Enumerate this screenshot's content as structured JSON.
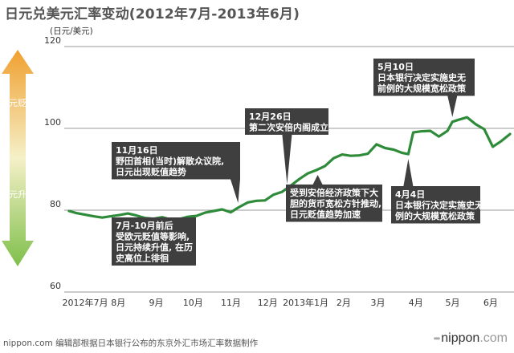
{
  "header": {
    "title": "日元兑美元汇率变动(2012年7月-2013年6月)"
  },
  "side_arrow": {
    "top_label": "日元贬值",
    "bottom_label": "日元升值",
    "top_color": "#f0a030",
    "bottom_color": "#7fbf4a"
  },
  "chart_data": {
    "type": "line",
    "ylabel": "(日元/美元)",
    "ylim": [
      60,
      120
    ],
    "y_ticks": [
      "120",
      "100",
      "80",
      "60"
    ],
    "grid": true,
    "legend": "none",
    "line_color": "#2e8b3a",
    "x_ticks": [
      "2012年7月",
      "8月",
      "9月",
      "10月",
      "11月",
      "12月",
      "2013年1月",
      "2月",
      "3月",
      "4月",
      "5月",
      "6月"
    ],
    "x": [
      "2012-07-01",
      "2012-07-07",
      "2012-07-14",
      "2012-07-21",
      "2012-07-28",
      "2012-08-04",
      "2012-08-11",
      "2012-08-18",
      "2012-08-25",
      "2012-09-01",
      "2012-09-08",
      "2012-09-15",
      "2012-09-22",
      "2012-09-29",
      "2012-10-06",
      "2012-10-13",
      "2012-10-20",
      "2012-10-27",
      "2012-11-03",
      "2012-11-10",
      "2012-11-16",
      "2012-11-24",
      "2012-12-01",
      "2012-12-08",
      "2012-12-15",
      "2012-12-22",
      "2012-12-29",
      "2013-01-05",
      "2013-01-12",
      "2013-01-19",
      "2013-01-26",
      "2013-02-02",
      "2013-02-09",
      "2013-02-16",
      "2013-02-23",
      "2013-03-02",
      "2013-03-09",
      "2013-03-16",
      "2013-03-23",
      "2013-03-30",
      "2013-04-04",
      "2013-04-08",
      "2013-04-15",
      "2013-04-22",
      "2013-04-29",
      "2013-05-06",
      "2013-05-10",
      "2013-05-15",
      "2013-05-22",
      "2013-05-29",
      "2013-06-05",
      "2013-06-12",
      "2013-06-19",
      "2013-06-26"
    ],
    "values": [
      79.8,
      79.3,
      78.9,
      78.5,
      78.2,
      78.5,
      78.8,
      79.2,
      78.7,
      78.1,
      77.9,
      78.3,
      77.7,
      77.8,
      78.4,
      78.6,
      79.4,
      79.8,
      80.2,
      79.5,
      80.6,
      81.9,
      82.3,
      82.4,
      83.8,
      84.5,
      86.0,
      87.6,
      89.0,
      89.8,
      90.8,
      92.7,
      93.6,
      93.3,
      93.4,
      93.8,
      96.1,
      95.2,
      94.8,
      94.0,
      93.7,
      99.0,
      99.3,
      99.4,
      98.0,
      99.4,
      101.6,
      102.1,
      102.7,
      101.0,
      99.8,
      95.5,
      96.9,
      98.6
    ],
    "annotations": [
      {
        "lines": [
          "7月-10月前后",
          "受欧元贬值等影响,",
          "日元持续升值, 在历",
          "史高位上徘徊"
        ],
        "date": "2012-09-15",
        "value": 77.9
      },
      {
        "lines": [
          "11月16日",
          "野田首相(当时)解散众议院,",
          "日元出现贬值趋势"
        ],
        "date": "2012-11-16",
        "value": 80.6
      },
      {
        "lines": [
          "12月26日",
          "第二次安倍内阁成立"
        ],
        "date": "2012-12-26",
        "value": 85.2
      },
      {
        "lines": [
          "受到安倍经济政策下大",
          "胆的货币宽松方针推动,",
          "日元贬值趋势加速"
        ],
        "date": "2013-01-20",
        "value": 89.8
      },
      {
        "lines": [
          "4月4日",
          "日本银行决定实施史无前",
          "例的大规模宽松政策"
        ],
        "date": "2013-04-04",
        "value": 93.7
      },
      {
        "lines": [
          "5月10日",
          "日本银行决定实施史无",
          "前例的大规模宽松政策"
        ],
        "date": "2013-05-10",
        "value": 101.6
      }
    ]
  },
  "footer": {
    "credit": "nippon.com 编辑部根据日本银行公布的东京外汇市场汇率数据制作",
    "brand_dots": "•••",
    "brand_name": "nippon",
    "brand_tld": ".com"
  }
}
